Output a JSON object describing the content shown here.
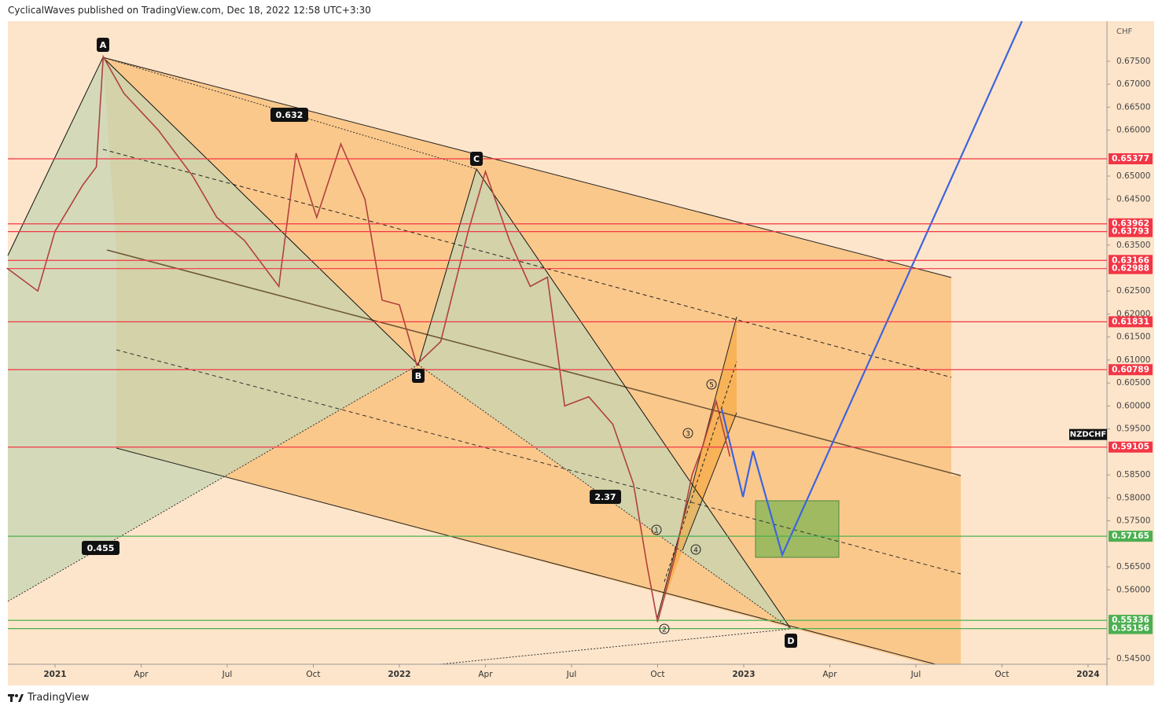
{
  "chart_data": {
    "type": "line",
    "title": "CyclicalWaves published on TradingView.com, Dec 18, 2022 12:58 UTC+3:30",
    "footer": "TradingView",
    "currency": "CHF",
    "x": [
      2020.86,
      2020.95,
      2021.0,
      2021.08,
      2021.12,
      2021.14,
      2021.2,
      2021.3,
      2021.4,
      2021.47,
      2021.55,
      2021.65,
      2021.7,
      2021.76,
      2021.83,
      2021.9,
      2021.95,
      2022.0,
      2022.05,
      2022.12,
      2022.2,
      2022.25,
      2022.32,
      2022.38,
      2022.43,
      2022.48,
      2022.55,
      2022.62,
      2022.68,
      2022.72,
      2022.75,
      2022.8,
      2022.85,
      2022.88,
      2022.92,
      2022.96
    ],
    "series": [
      {
        "name": "NZDCHF",
        "color": "#b0413e",
        "values": [
          0.63,
          0.625,
          0.638,
          0.648,
          0.652,
          0.676,
          0.668,
          0.66,
          0.65,
          0.641,
          0.636,
          0.626,
          0.655,
          0.641,
          0.657,
          0.645,
          0.623,
          0.622,
          0.609,
          0.614,
          0.638,
          0.651,
          0.636,
          0.626,
          0.628,
          0.6,
          0.602,
          0.596,
          0.583,
          0.565,
          0.553,
          0.567,
          0.585,
          0.591,
          0.601,
          0.589
        ]
      }
    ],
    "forecast": {
      "color": "#3c64e0",
      "x": [
        2022.936,
        2022.998,
        2023.027,
        2023.112,
        2023.808
      ],
      "values": [
        0.5994,
        0.5802,
        0.5902,
        0.5676,
        0.6837
      ]
    },
    "levels": [
      {
        "value": 0.65377,
        "color": "#f23645"
      },
      {
        "value": 0.63962,
        "color": "#f23645"
      },
      {
        "value": 0.63793,
        "color": "#f23645"
      },
      {
        "value": 0.63166,
        "color": "#f23645"
      },
      {
        "value": 0.62988,
        "color": "#f23645"
      },
      {
        "value": 0.61831,
        "color": "#f23645"
      },
      {
        "value": 0.60789,
        "color": "#f23645"
      },
      {
        "value": 0.59105,
        "color": "#f23645"
      },
      {
        "value": 0.57165,
        "color": "#4caf50"
      },
      {
        "value": 0.55336,
        "color": "#4caf50"
      },
      {
        "value": 0.55156,
        "color": "#4caf50"
      }
    ],
    "annotations": [
      "A",
      "B",
      "C",
      "D",
      "0.632",
      "2.37",
      "0.455",
      "1",
      "2",
      "3",
      "4",
      "5"
    ],
    "xlim": [
      2020.863,
      2024.055
    ],
    "ylim": [
      0.5438,
      0.6837
    ],
    "xticks": [
      {
        "value": 2021,
        "label": "2021"
      },
      {
        "value": 2021.25,
        "label": "Apr"
      },
      {
        "value": 2021.5,
        "label": "Jul"
      },
      {
        "value": 2021.75,
        "label": "Oct"
      },
      {
        "value": 2022,
        "label": "2022"
      },
      {
        "value": 2022.25,
        "label": "Apr"
      },
      {
        "value": 2022.5,
        "label": "Jul"
      },
      {
        "value": 2022.75,
        "label": "Oct"
      },
      {
        "value": 2023,
        "label": "2023"
      },
      {
        "value": 2023.25,
        "label": "Apr"
      },
      {
        "value": 2023.5,
        "label": "Jul"
      },
      {
        "value": 2023.75,
        "label": "Oct"
      },
      {
        "value": 2024,
        "label": "2024"
      }
    ],
    "yticks": [
      {
        "value": 0.675,
        "label": "0.67500"
      },
      {
        "value": 0.67,
        "label": "0.67000"
      },
      {
        "value": 0.665,
        "label": "0.66500"
      },
      {
        "value": 0.66,
        "label": "0.66000"
      },
      {
        "value": 0.65,
        "label": "0.65000"
      },
      {
        "value": 0.645,
        "label": "0.64500"
      },
      {
        "value": 0.635,
        "label": "0.63500"
      },
      {
        "value": 0.625,
        "label": "0.62500"
      },
      {
        "value": 0.62,
        "label": "0.62000"
      },
      {
        "value": 0.615,
        "label": "0.61500"
      },
      {
        "value": 0.61,
        "label": "0.61000"
      },
      {
        "value": 0.605,
        "label": "0.60500"
      },
      {
        "value": 0.6,
        "label": "0.60000"
      },
      {
        "value": 0.595,
        "label": "0.59500"
      },
      {
        "value": 0.585,
        "label": "0.58500"
      },
      {
        "value": 0.58,
        "label": "0.58000"
      },
      {
        "value": 0.575,
        "label": "0.57500"
      },
      {
        "value": 0.565,
        "label": "0.56500"
      },
      {
        "value": 0.56,
        "label": "0.56000"
      },
      {
        "value": 0.545,
        "label": "0.54500"
      }
    ]
  }
}
